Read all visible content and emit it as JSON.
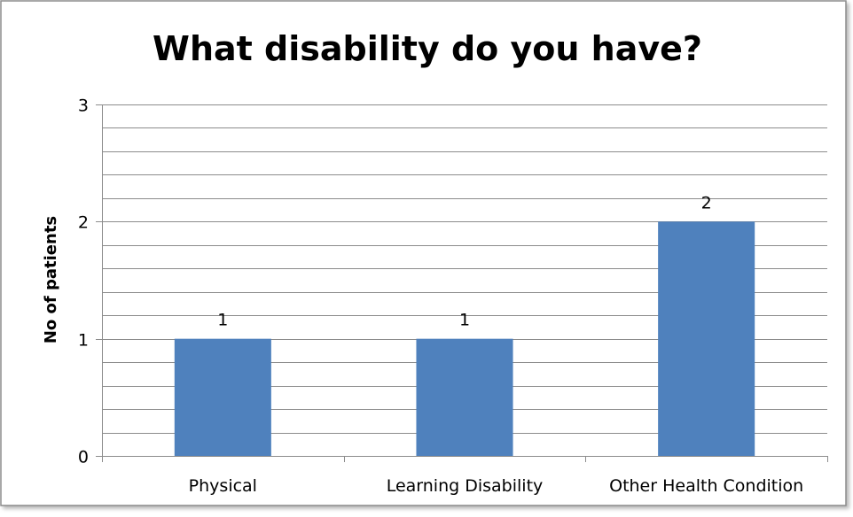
{
  "chart_data": {
    "type": "bar",
    "title": "What disability do you have?",
    "xlabel": "",
    "ylabel": "No of patients",
    "categories": [
      "Physical",
      "Learning Disability",
      "Other Health Condition"
    ],
    "values": [
      1,
      1,
      2
    ],
    "data_labels": [
      "1",
      "1",
      "2"
    ],
    "yticks": [
      0,
      1,
      2,
      3
    ],
    "ylim": [
      0,
      3
    ],
    "minor_grid_step": 0.2,
    "grid": true,
    "legend": "none",
    "bar_color": "#4F81BD"
  }
}
